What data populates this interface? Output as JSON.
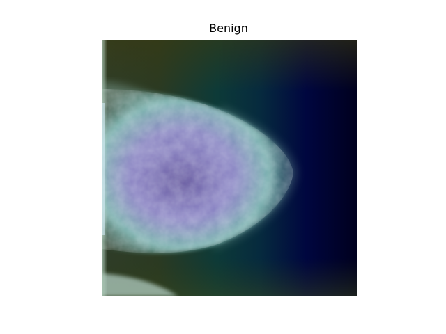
{
  "figure": {
    "title": "Benign"
  },
  "image": {
    "description_colors": {
      "left_tint": "#3b4a2a",
      "mid_tint": "#0b3a3a",
      "right_tint": "#000026",
      "tissue_outer": "#7fb8b2",
      "tissue_inner": "#8a86c6"
    }
  }
}
